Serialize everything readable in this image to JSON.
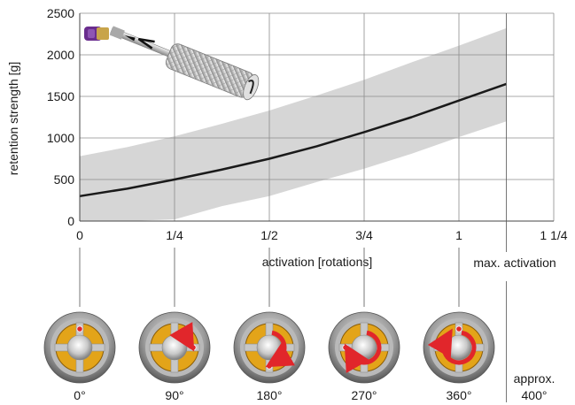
{
  "chart_data": {
    "type": "line",
    "xlabel": "activation [rotations]",
    "ylabel": "retention strength [g]",
    "xlim": [
      0,
      1.25
    ],
    "ylim": [
      0,
      2500
    ],
    "x_ticks": [
      {
        "value": 0,
        "label": "0"
      },
      {
        "value": 0.25,
        "label": "1/4"
      },
      {
        "value": 0.5,
        "label": "1/2"
      },
      {
        "value": 0.75,
        "label": "3/4"
      },
      {
        "value": 1,
        "label": "1"
      },
      {
        "value": 1.25,
        "label": "1 1/4"
      }
    ],
    "y_ticks": [
      0,
      500,
      1000,
      1500,
      2000,
      2500
    ],
    "grid": true,
    "series": [
      {
        "x": [
          0,
          0.125,
          0.25,
          0.375,
          0.5,
          0.625,
          0.75,
          0.875,
          1,
          1.125
        ],
        "y": [
          300,
          390,
          500,
          620,
          750,
          900,
          1070,
          1250,
          1450,
          1650
        ],
        "color": "#1a1a1a"
      }
    ],
    "band": {
      "x": [
        0,
        0.125,
        0.25,
        0.375,
        0.5,
        0.625,
        0.75,
        0.875,
        1,
        1.125
      ],
      "upper": [
        780,
        890,
        1020,
        1170,
        1330,
        1510,
        1700,
        1910,
        2110,
        2320
      ],
      "lower": [
        0,
        0,
        20,
        180,
        300,
        470,
        630,
        810,
        1010,
        1200
      ],
      "color": "#d6d6d6"
    },
    "max_activation": {
      "x": 1.125,
      "label": "max. activation"
    },
    "connector_values": [
      0,
      0.25,
      0.5,
      0.75,
      1
    ],
    "dials": [
      {
        "label": "0°",
        "rotation": 0,
        "arrow": false
      },
      {
        "label": "90°",
        "rotation": 90,
        "arrow": true
      },
      {
        "label": "180°",
        "rotation": 180,
        "arrow": true
      },
      {
        "label": "270°",
        "rotation": 270,
        "arrow": true
      },
      {
        "label": "360°",
        "rotation": 360,
        "arrow": true
      }
    ],
    "extra_label": {
      "line1": "approx.",
      "line2": "400°"
    }
  },
  "colors": {
    "gold": "#e3a419",
    "silver": "#b9b9b9",
    "red": "#e1262b",
    "purple": "#6a2d8e"
  }
}
